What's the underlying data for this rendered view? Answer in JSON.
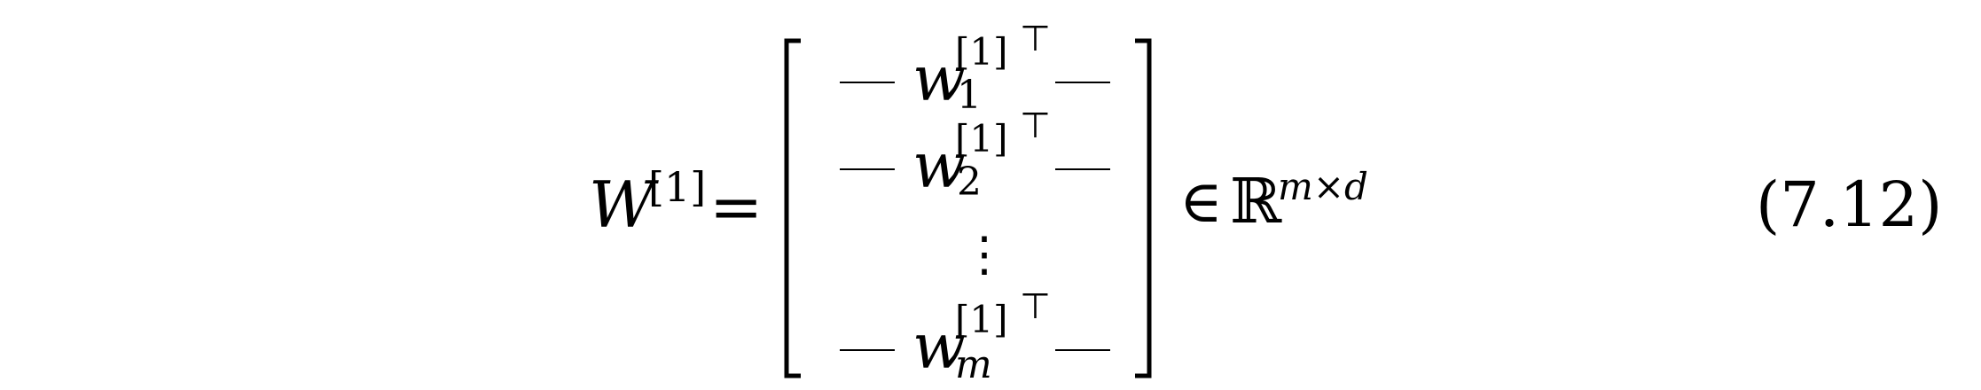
{
  "equation": {
    "lhs": {
      "symbol": "W",
      "superscript": "[1]"
    },
    "equals": "=",
    "matrix_rows": [
      {
        "left_dash": "—",
        "symbol": "w",
        "superscript": "[1]",
        "subscript": "1",
        "transpose": "⊤",
        "right_dash": "—"
      },
      {
        "left_dash": "—",
        "symbol": "w",
        "superscript": "[1]",
        "subscript": "2",
        "transpose": "⊤",
        "right_dash": "—"
      },
      {
        "vdots": "⋮"
      },
      {
        "left_dash": "—",
        "symbol": "w",
        "superscript": "[1]",
        "subscript": "m",
        "transpose": "⊤",
        "right_dash": "—"
      }
    ],
    "element_of": "∈",
    "set": {
      "symbol": "ℝ",
      "superscript": "m×d"
    },
    "number": "(7.12)"
  }
}
